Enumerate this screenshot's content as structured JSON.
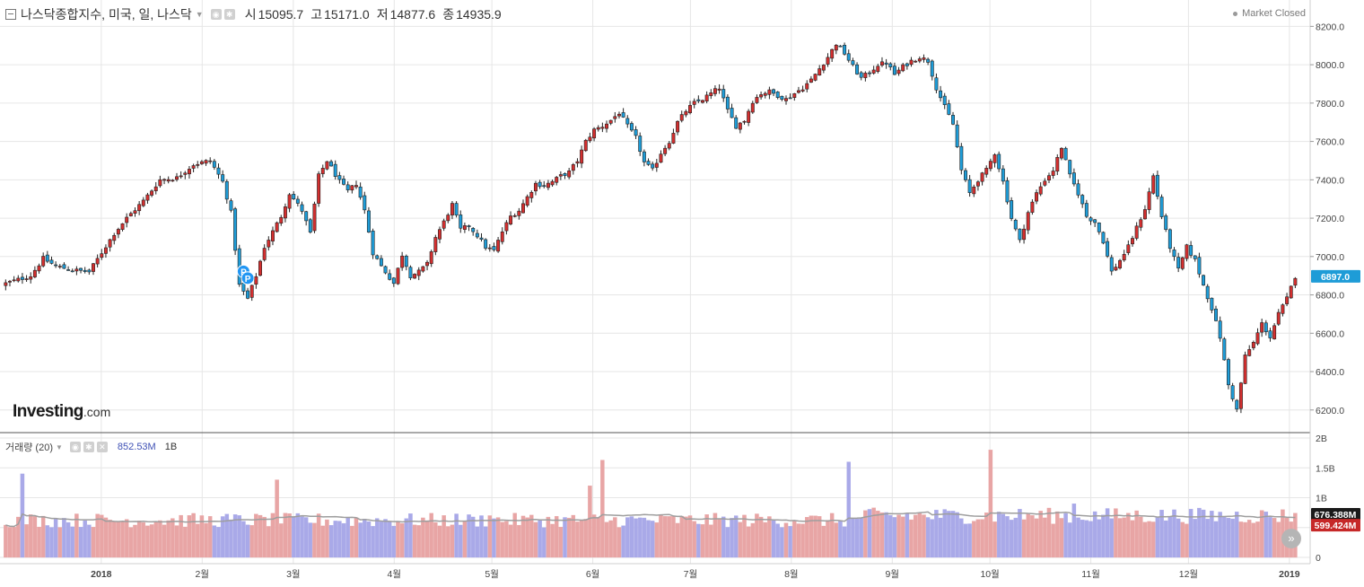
{
  "header": {
    "symbol": "나스닥종합지수, 미국, 일, 나스닥",
    "open_label": "시",
    "open_value": "15095.7",
    "high_label": "고",
    "high_value": "15171.0",
    "low_label": "저",
    "low_value": "14877.6",
    "close_label": "종",
    "close_value": "14935.9",
    "caret_icon": "chevron-down-icon",
    "eye_icon": "eye-icon",
    "settings_icon": "gear-icon"
  },
  "status": {
    "text": "Market Closed",
    "icon": "status-dot-icon"
  },
  "logo": {
    "name": "Investing",
    "suffix": ".com"
  },
  "volume_panel": {
    "label": "거래량 (20)",
    "value": "852.53M",
    "timeframe": "1B",
    "icons": [
      "eye-icon",
      "gear-icon",
      "close-icon"
    ]
  },
  "scroll_button": {
    "label": "»",
    "icon": "double-chevron-right-icon"
  },
  "colors": {
    "up": "#d32f2f",
    "down": "#1e9cd7",
    "vol_up": "#e8a5a5",
    "vol_down": "#a9a9e8",
    "ma_line": "#9e9e9e",
    "grid": "#e6e6e6",
    "last_price_bg": "#1e9cd7",
    "vol_ma_bg": "#1a1a1a",
    "vol_last_bg": "#c62828"
  },
  "chart_data": [
    {
      "type": "candlestick",
      "title": "나스닥종합지수",
      "y_ticks": [
        6200,
        6400,
        6600,
        6800,
        7000,
        7200,
        7400,
        7600,
        7800,
        8000,
        8200
      ],
      "y_tick_labels": [
        "6200.0",
        "6400.0",
        "6600.0",
        "6800.0",
        "7000.0",
        "7200.0",
        "7400.0",
        "7600.0",
        "7800.0",
        "8000.0",
        "8200.0"
      ],
      "ylim": [
        6110,
        8300
      ],
      "last_price": 6897.0,
      "last_price_label": "6897.0",
      "x_tick_labels": [
        "2018",
        "2월",
        "3월",
        "4월",
        "5월",
        "6월",
        "7월",
        "8월",
        "9월",
        "10월",
        "11월",
        "12월",
        "2019"
      ],
      "x_tick_days": [
        30,
        61,
        89,
        120,
        150,
        181,
        211,
        242,
        273,
        303,
        334,
        364,
        395
      ],
      "x_range_days": [
        0,
        400
      ],
      "annotations": [
        {
          "label": "P",
          "day": 73
        },
        {
          "label": "P",
          "day": 75
        }
      ],
      "anchors": [
        [
          0,
          6860
        ],
        [
          6,
          6900
        ],
        [
          9,
          6990
        ],
        [
          12,
          6950
        ],
        [
          16,
          6930
        ],
        [
          20,
          6920
        ],
        [
          23,
          7020
        ],
        [
          26,
          7120
        ],
        [
          29,
          7200
        ],
        [
          33,
          7290
        ],
        [
          37,
          7400
        ],
        [
          41,
          7410
        ],
        [
          45,
          7480
        ],
        [
          49,
          7500
        ],
        [
          52,
          7390
        ],
        [
          54,
          7230
        ],
        [
          56,
          6850
        ],
        [
          58,
          6780
        ],
        [
          60,
          6900
        ],
        [
          62,
          7050
        ],
        [
          64,
          7130
        ],
        [
          66,
          7210
        ],
        [
          68,
          7330
        ],
        [
          71,
          7240
        ],
        [
          73,
          7120
        ],
        [
          75,
          7420
        ],
        [
          77,
          7500
        ],
        [
          80,
          7390
        ],
        [
          82,
          7340
        ],
        [
          84,
          7380
        ],
        [
          86,
          7240
        ],
        [
          88,
          7020
        ],
        [
          90,
          6950
        ],
        [
          93,
          6860
        ],
        [
          95,
          7010
        ],
        [
          97,
          6900
        ],
        [
          99,
          6920
        ],
        [
          101,
          6960
        ],
        [
          103,
          7100
        ],
        [
          105,
          7180
        ],
        [
          107,
          7270
        ],
        [
          109,
          7140
        ],
        [
          111,
          7160
        ],
        [
          113,
          7110
        ],
        [
          115,
          7050
        ],
        [
          117,
          7030
        ],
        [
          119,
          7130
        ],
        [
          121,
          7210
        ],
        [
          123,
          7240
        ],
        [
          125,
          7310
        ],
        [
          127,
          7380
        ],
        [
          129,
          7370
        ],
        [
          131,
          7390
        ],
        [
          133,
          7420
        ],
        [
          135,
          7440
        ],
        [
          137,
          7500
        ],
        [
          139,
          7600
        ],
        [
          141,
          7660
        ],
        [
          143,
          7680
        ],
        [
          145,
          7710
        ],
        [
          147,
          7750
        ],
        [
          149,
          7680
        ],
        [
          151,
          7620
        ],
        [
          153,
          7490
        ],
        [
          155,
          7450
        ],
        [
          157,
          7540
        ],
        [
          159,
          7600
        ],
        [
          161,
          7700
        ],
        [
          163,
          7760
        ],
        [
          165,
          7800
        ],
        [
          167,
          7820
        ],
        [
          169,
          7850
        ],
        [
          171,
          7880
        ],
        [
          173,
          7760
        ],
        [
          175,
          7680
        ],
        [
          177,
          7710
        ],
        [
          179,
          7810
        ],
        [
          181,
          7850
        ],
        [
          183,
          7860
        ],
        [
          185,
          7840
        ],
        [
          187,
          7820
        ],
        [
          189,
          7850
        ],
        [
          191,
          7880
        ],
        [
          193,
          7920
        ],
        [
          195,
          7980
        ],
        [
          197,
          8040
        ],
        [
          199,
          8110
        ],
        [
          201,
          8060
        ],
        [
          203,
          7990
        ],
        [
          205,
          7930
        ],
        [
          207,
          7960
        ],
        [
          209,
          8000
        ],
        [
          211,
          8010
        ],
        [
          213,
          7950
        ],
        [
          215,
          7990
        ],
        [
          217,
          8020
        ],
        [
          219,
          8040
        ],
        [
          221,
          8020
        ],
        [
          223,
          7880
        ],
        [
          225,
          7780
        ],
        [
          227,
          7690
        ],
        [
          229,
          7450
        ],
        [
          231,
          7330
        ],
        [
          233,
          7400
        ],
        [
          235,
          7450
        ],
        [
          237,
          7540
        ],
        [
          239,
          7390
        ],
        [
          241,
          7200
        ],
        [
          243,
          7080
        ],
        [
          245,
          7230
        ],
        [
          247,
          7330
        ],
        [
          249,
          7400
        ],
        [
          251,
          7450
        ],
        [
          253,
          7570
        ],
        [
          255,
          7420
        ],
        [
          257,
          7330
        ],
        [
          259,
          7210
        ],
        [
          261,
          7180
        ],
        [
          263,
          7080
        ],
        [
          265,
          6920
        ],
        [
          267,
          6980
        ],
        [
          269,
          7050
        ],
        [
          271,
          7150
        ],
        [
          273,
          7250
        ],
        [
          275,
          7420
        ],
        [
          277,
          7210
        ],
        [
          279,
          7050
        ],
        [
          281,
          6930
        ],
        [
          283,
          7050
        ],
        [
          285,
          6980
        ],
        [
          287,
          6850
        ],
        [
          289,
          6730
        ],
        [
          291,
          6580
        ],
        [
          293,
          6330
        ],
        [
          295,
          6200
        ],
        [
          297,
          6480
        ],
        [
          299,
          6550
        ],
        [
          301,
          6650
        ],
        [
          303,
          6580
        ],
        [
          305,
          6700
        ],
        [
          307,
          6780
        ],
        [
          309,
          6897
        ]
      ],
      "notes": "Daily candles approximately Dec 2017 – Jan 2019; values read from gridlines."
    },
    {
      "type": "bar",
      "title": "거래량 (20)",
      "y_ticks": [
        0,
        500000000,
        1000000000,
        1500000000,
        2000000000
      ],
      "y_tick_labels": [
        "0",
        "500M",
        "1B",
        "1.5B",
        "2B"
      ],
      "ylim": [
        0,
        2000000000
      ],
      "ma_value_label": "676.388M",
      "last_value_label": "599.424M",
      "ma_value": 676388000,
      "last_value": 599424000,
      "baseline": 640000000,
      "spikes": [
        {
          "day": 5,
          "value": 1400000000
        },
        {
          "day": 84,
          "value": 1300000000
        },
        {
          "day": 150,
          "value": 700000000
        },
        {
          "day": 180,
          "value": 1200000000
        },
        {
          "day": 185,
          "value": 1630000000
        },
        {
          "day": 261,
          "value": 1600000000
        },
        {
          "day": 305,
          "value": 1800000000
        },
        {
          "day": 330,
          "value": 900000000
        }
      ]
    }
  ]
}
